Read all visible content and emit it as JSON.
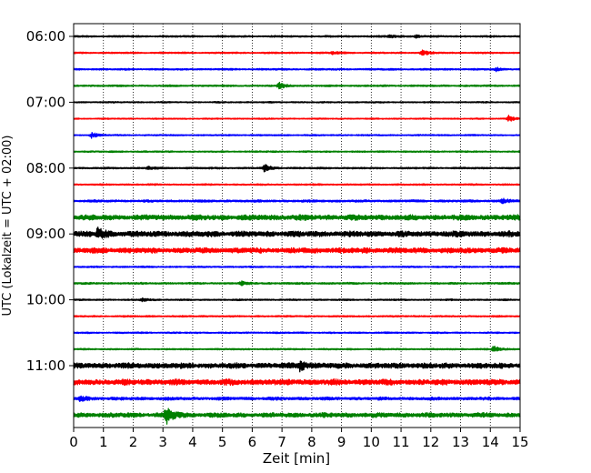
{
  "chart_data": {
    "type": "line",
    "subtype": "seismogram-helicorder",
    "xlabel": "Zeit  [min]",
    "ylabel": "UTC (Lokalzeit = UTC + 02:00)",
    "xlim": [
      0,
      15
    ],
    "x_ticks": [
      "0",
      "1",
      "2",
      "3",
      "4",
      "5",
      "6",
      "7",
      "8",
      "9",
      "10",
      "11",
      "12",
      "13",
      "14",
      "15"
    ],
    "y_ticks": [
      {
        "label": "06:00",
        "row": 0
      },
      {
        "label": "07:00",
        "row": 4
      },
      {
        "label": "08:00",
        "row": 8
      },
      {
        "label": "09:00",
        "row": 12
      },
      {
        "label": "10:00",
        "row": 16
      },
      {
        "label": "11:00",
        "row": 20
      }
    ],
    "grid": "vertical dotted at each minute",
    "row_interval_min": 15,
    "series_colors": [
      "#000000",
      "#ff0000",
      "#0000ff",
      "#008000"
    ],
    "traces": [
      {
        "start": "06:00",
        "color": "#000000",
        "noise": 0.22,
        "events": [
          {
            "t": 10.6,
            "amp": 0.5
          },
          {
            "t": 11.5,
            "amp": 0.4
          }
        ]
      },
      {
        "start": "06:15",
        "color": "#ff0000",
        "noise": 0.2,
        "events": [
          {
            "t": 8.7,
            "amp": 0.5
          },
          {
            "t": 11.7,
            "amp": 0.9
          }
        ]
      },
      {
        "start": "06:30",
        "color": "#0000ff",
        "noise": 0.22,
        "events": [
          {
            "t": 14.2,
            "amp": 0.5
          }
        ]
      },
      {
        "start": "06:45",
        "color": "#008000",
        "noise": 0.22,
        "events": [
          {
            "t": 6.9,
            "amp": 1.0
          }
        ]
      },
      {
        "start": "07:00",
        "color": "#000000",
        "noise": 0.18,
        "events": []
      },
      {
        "start": "07:15",
        "color": "#ff0000",
        "noise": 0.16,
        "events": [
          {
            "t": 14.6,
            "amp": 1.1
          }
        ]
      },
      {
        "start": "07:30",
        "color": "#0000ff",
        "noise": 0.18,
        "events": [
          {
            "t": 0.6,
            "amp": 0.9
          }
        ]
      },
      {
        "start": "07:45",
        "color": "#008000",
        "noise": 0.2,
        "events": []
      },
      {
        "start": "08:00",
        "color": "#000000",
        "noise": 0.22,
        "events": [
          {
            "t": 2.5,
            "amp": 0.5
          },
          {
            "t": 6.4,
            "amp": 1.2
          }
        ]
      },
      {
        "start": "08:15",
        "color": "#ff0000",
        "noise": 0.2,
        "events": []
      },
      {
        "start": "08:30",
        "color": "#0000ff",
        "noise": 0.3,
        "events": [
          {
            "t": 14.4,
            "amp": 0.9
          }
        ]
      },
      {
        "start": "08:45",
        "color": "#008000",
        "noise": 0.7,
        "events": []
      },
      {
        "start": "09:00",
        "color": "#000000",
        "noise": 0.75,
        "events": [
          {
            "t": 0.8,
            "amp": 1.6
          }
        ]
      },
      {
        "start": "09:15",
        "color": "#ff0000",
        "noise": 0.7,
        "events": []
      },
      {
        "start": "09:30",
        "color": "#0000ff",
        "noise": 0.2,
        "events": []
      },
      {
        "start": "09:45",
        "color": "#008000",
        "noise": 0.24,
        "events": [
          {
            "t": 5.6,
            "amp": 0.6
          }
        ]
      },
      {
        "start": "10:00",
        "color": "#000000",
        "noise": 0.2,
        "events": [
          {
            "t": 2.3,
            "amp": 0.6
          }
        ]
      },
      {
        "start": "10:15",
        "color": "#ff0000",
        "noise": 0.2,
        "events": []
      },
      {
        "start": "10:30",
        "color": "#0000ff",
        "noise": 0.2,
        "events": []
      },
      {
        "start": "10:45",
        "color": "#008000",
        "noise": 0.2,
        "events": [
          {
            "t": 14.1,
            "amp": 1.0
          }
        ]
      },
      {
        "start": "11:00",
        "color": "#000000",
        "noise": 0.7,
        "events": [
          {
            "t": 7.6,
            "amp": 1.6
          }
        ]
      },
      {
        "start": "11:15",
        "color": "#ff0000",
        "noise": 0.75,
        "events": []
      },
      {
        "start": "11:30",
        "color": "#0000ff",
        "noise": 0.4,
        "events": [
          {
            "t": 0.2,
            "amp": 0.9
          }
        ]
      },
      {
        "start": "11:45",
        "color": "#008000",
        "noise": 0.6,
        "events": [
          {
            "t": 3.1,
            "amp": 3.2
          }
        ]
      }
    ]
  }
}
